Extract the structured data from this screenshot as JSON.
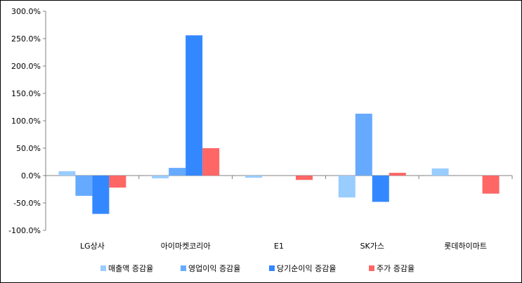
{
  "chart_data": {
    "type": "bar",
    "categories": [
      "LG상사",
      "아이마켓코리아",
      "E1",
      "SK가스",
      "롯데하이마트"
    ],
    "series": [
      {
        "name": "매출액 증감율",
        "color": "#99ccff",
        "values": [
          8,
          -5,
          -4,
          -40,
          13
        ]
      },
      {
        "name": "영업이익 증감율",
        "color": "#66aaff",
        "values": [
          -37,
          14,
          0,
          113,
          0
        ]
      },
      {
        "name": "당기순이익 증감율",
        "color": "#3388ff",
        "values": [
          -70,
          256,
          0,
          -48,
          0
        ]
      },
      {
        "name": "주가 증감율",
        "color": "#ff6666",
        "values": [
          -22,
          50,
          -8,
          5,
          -33
        ]
      }
    ],
    "title": "",
    "xlabel": "",
    "ylabel": "",
    "ylim": [
      -100,
      300
    ],
    "yticks": [
      "300.0%",
      "250.0%",
      "200.0%",
      "150.0%",
      "100.0%",
      "50.0%",
      "0.0%",
      "-50.0%",
      "-100.0%"
    ],
    "ytick_values": [
      300,
      250,
      200,
      150,
      100,
      50,
      0,
      -50,
      -100
    ],
    "grid": false,
    "legend_position": "bottom"
  }
}
